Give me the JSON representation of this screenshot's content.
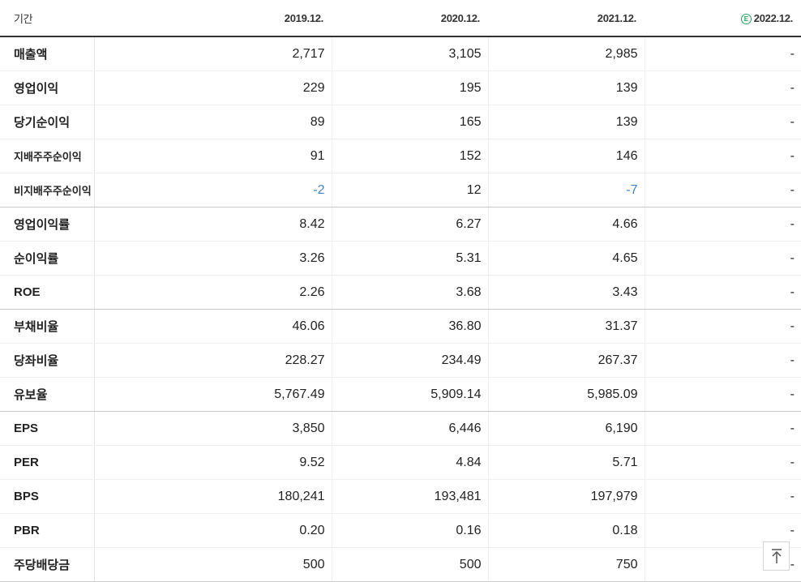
{
  "header": {
    "label": "기간",
    "periods": [
      "2019.12.",
      "2020.12.",
      "2021.12.",
      "2022.12."
    ],
    "estimate_marker": "E"
  },
  "rows": [
    {
      "label": "매출액",
      "values": [
        "2,717",
        "3,105",
        "2,985",
        "-"
      ]
    },
    {
      "label": "영업이익",
      "values": [
        "229",
        "195",
        "139",
        "-"
      ]
    },
    {
      "label": "당기순이익",
      "values": [
        "89",
        "165",
        "139",
        "-"
      ]
    },
    {
      "label": "지배주주순이익",
      "values": [
        "91",
        "152",
        "146",
        "-"
      ]
    },
    {
      "label": "비지배주주순이익",
      "values": [
        "-2",
        "12",
        "-7",
        "-"
      ]
    },
    {
      "label": "영업이익률",
      "values": [
        "8.42",
        "6.27",
        "4.66",
        "-"
      ]
    },
    {
      "label": "순이익률",
      "values": [
        "3.26",
        "5.31",
        "4.65",
        "-"
      ]
    },
    {
      "label": "ROE",
      "values": [
        "2.26",
        "3.68",
        "3.43",
        "-"
      ]
    },
    {
      "label": "부채비율",
      "values": [
        "46.06",
        "36.80",
        "31.37",
        "-"
      ]
    },
    {
      "label": "당좌비율",
      "values": [
        "228.27",
        "234.49",
        "267.37",
        "-"
      ]
    },
    {
      "label": "유보율",
      "values": [
        "5,767.49",
        "5,909.14",
        "5,985.09",
        "-"
      ]
    },
    {
      "label": "EPS",
      "values": [
        "3,850",
        "6,446",
        "6,190",
        "-"
      ]
    },
    {
      "label": "PER",
      "values": [
        "9.52",
        "4.84",
        "5.71",
        "-"
      ]
    },
    {
      "label": "BPS",
      "values": [
        "180,241",
        "193,481",
        "197,979",
        "-"
      ]
    },
    {
      "label": "PBR",
      "values": [
        "0.20",
        "0.16",
        "0.18",
        "-"
      ]
    },
    {
      "label": "주당배당금",
      "values": [
        "500",
        "500",
        "750",
        "-"
      ]
    }
  ],
  "colors": {
    "negative": "#3c85d3",
    "estimate": "#1aa85a",
    "header_rule": "#333333"
  },
  "icons": {
    "estimate": "estimate-badge-icon",
    "scroll_top": "arrow-up-to-top-icon"
  }
}
